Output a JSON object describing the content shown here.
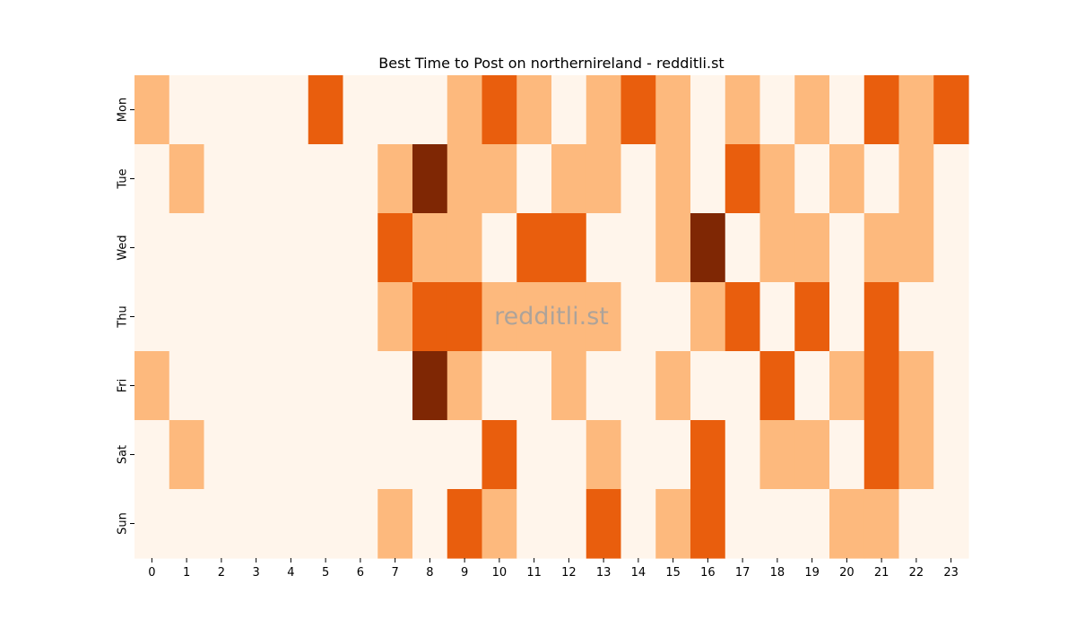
{
  "chart_data": {
    "type": "heatmap",
    "title": "Best Time to Post on northernireland - redditli.st",
    "watermark": "redditli.st",
    "x_categories": [
      "0",
      "1",
      "2",
      "3",
      "4",
      "5",
      "6",
      "7",
      "8",
      "9",
      "10",
      "11",
      "12",
      "13",
      "14",
      "15",
      "16",
      "17",
      "18",
      "19",
      "20",
      "21",
      "22",
      "23"
    ],
    "y_categories": [
      "Mon",
      "Tue",
      "Wed",
      "Thu",
      "Fri",
      "Sat",
      "Sun"
    ],
    "values": [
      [
        1,
        0,
        0,
        0,
        0,
        2,
        0,
        0,
        0,
        1,
        2,
        1,
        0,
        1,
        2,
        1,
        0,
        1,
        0,
        1,
        0,
        2,
        1,
        2
      ],
      [
        0,
        1,
        0,
        0,
        0,
        0,
        0,
        1,
        3,
        1,
        1,
        0,
        1,
        1,
        0,
        1,
        0,
        2,
        1,
        0,
        1,
        0,
        1,
        0
      ],
      [
        0,
        0,
        0,
        0,
        0,
        0,
        0,
        2,
        1,
        1,
        0,
        2,
        2,
        0,
        0,
        1,
        3,
        0,
        1,
        1,
        0,
        1,
        1,
        0
      ],
      [
        0,
        0,
        0,
        0,
        0,
        0,
        0,
        1,
        2,
        2,
        1,
        1,
        1,
        1,
        0,
        0,
        1,
        2,
        0,
        2,
        0,
        2,
        0,
        0
      ],
      [
        1,
        0,
        0,
        0,
        0,
        0,
        0,
        0,
        3,
        1,
        0,
        0,
        1,
        0,
        0,
        1,
        0,
        0,
        2,
        0,
        1,
        2,
        1,
        0
      ],
      [
        0,
        1,
        0,
        0,
        0,
        0,
        0,
        0,
        0,
        0,
        2,
        0,
        0,
        1,
        0,
        0,
        2,
        0,
        1,
        1,
        0,
        2,
        1,
        0
      ],
      [
        0,
        0,
        0,
        0,
        0,
        0,
        0,
        1,
        0,
        2,
        1,
        0,
        0,
        2,
        0,
        1,
        2,
        0,
        0,
        0,
        1,
        1,
        0,
        0
      ]
    ],
    "color_scale": [
      "#fff5eb",
      "#fdb97d",
      "#e95e0d",
      "#7f2704"
    ],
    "grid": false,
    "legend": "none"
  }
}
